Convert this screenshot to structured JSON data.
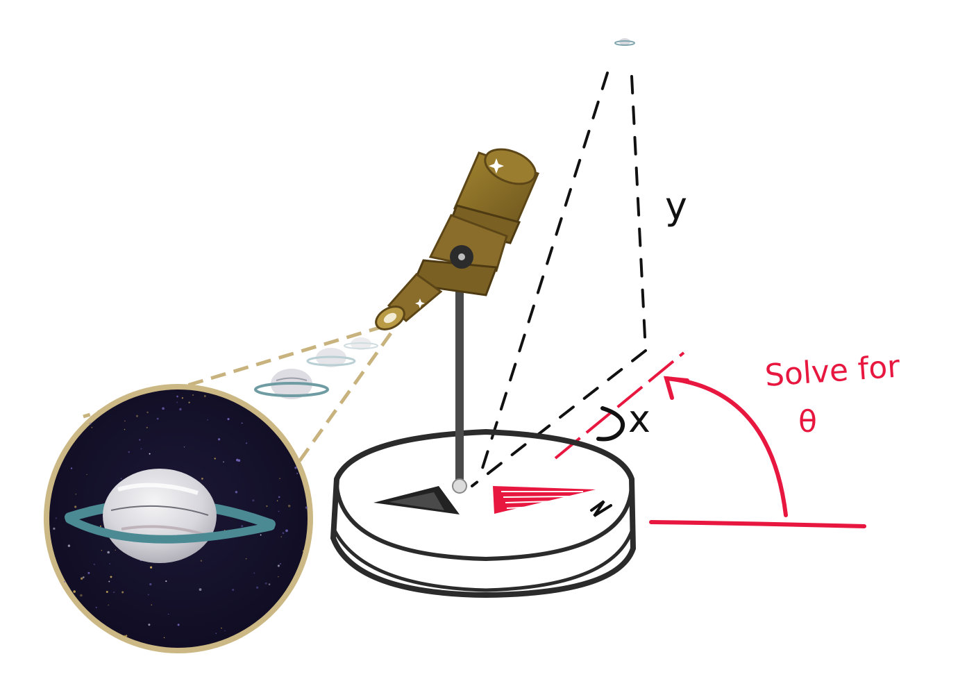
{
  "labels": {
    "y": "y",
    "x": "x",
    "task_line1": "Solve for",
    "task_line2": "θ",
    "north": "N"
  },
  "colors": {
    "ink": "#1a1a1a",
    "red": "#e8173f",
    "brass": "#8a6d2b",
    "brass_dark": "#5c4617",
    "brass_light": "#b99a45",
    "space": "#14102b",
    "rim": "#cbb884",
    "ring": "#4b8a93",
    "planet": "#d9d9dd"
  }
}
